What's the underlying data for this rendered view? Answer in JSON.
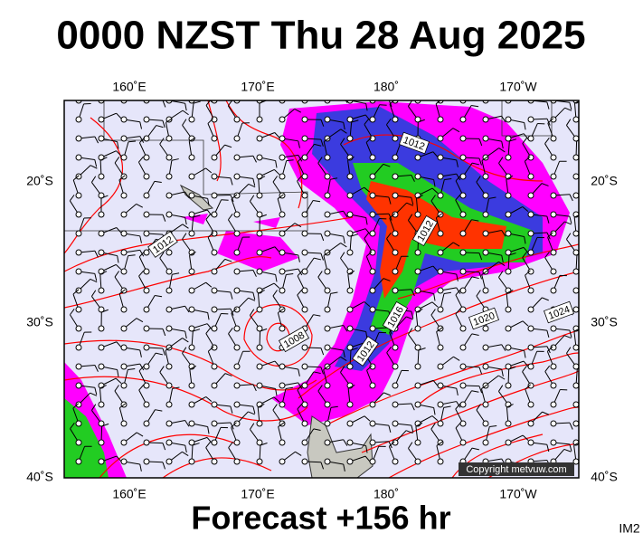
{
  "header": {
    "title": "0000 NZST Thu 28 Aug 2025"
  },
  "map": {
    "top_labels": [
      "160˚E",
      "170˚E",
      "180˚",
      "170˚W"
    ],
    "bottom_labels": [
      "160˚E",
      "170˚E",
      "180˚",
      "170˚W"
    ],
    "left_labels": [
      "20˚S",
      "30˚S",
      "40˚S"
    ],
    "right_labels": [
      "20˚S",
      "30˚S",
      "40˚S"
    ],
    "isobar_labels": [
      "1012",
      "1012",
      "1012",
      "1008",
      "1012",
      "1016",
      "1020",
      "1024"
    ],
    "copyright": "Copyright metvuw.com"
  },
  "footer": {
    "forecast": "Forecast +156 hr",
    "id": "IM2"
  }
}
